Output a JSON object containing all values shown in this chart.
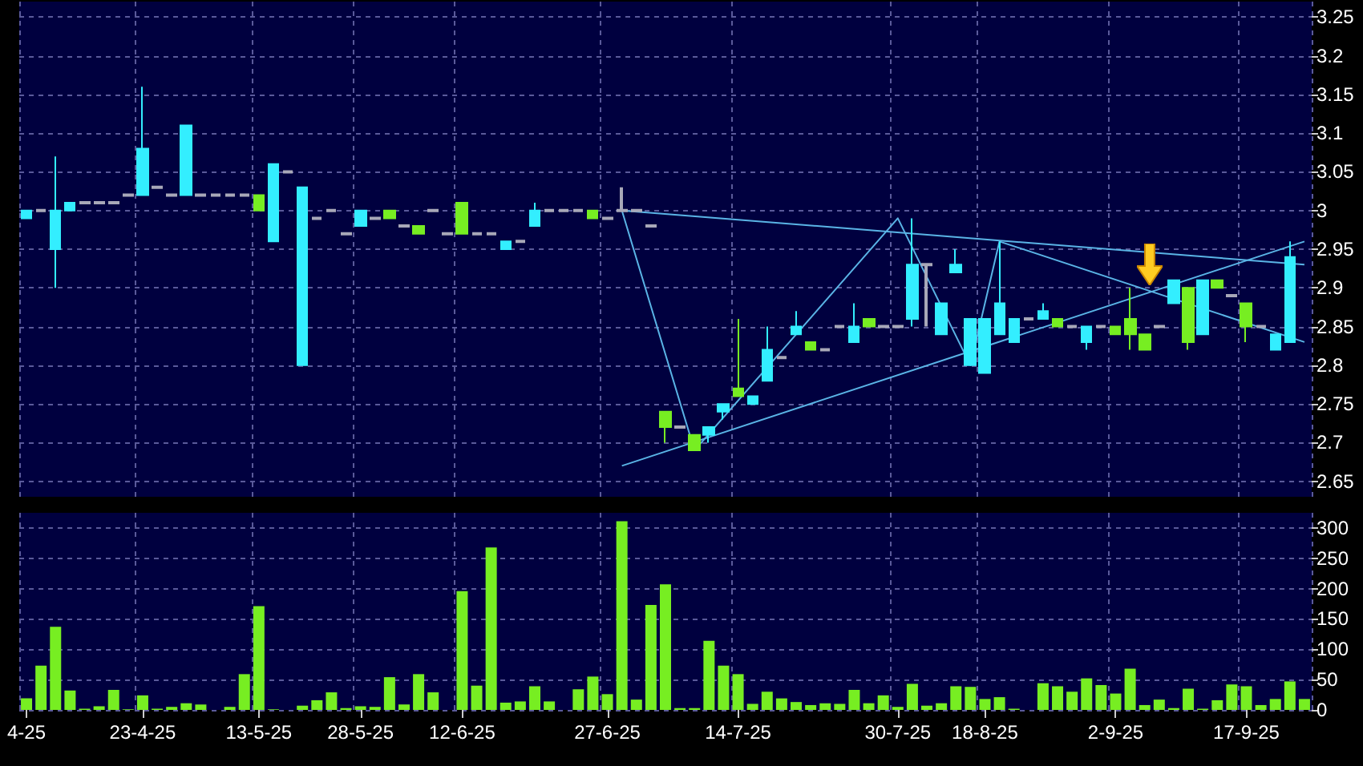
{
  "chart_data": [
    {
      "type": "candlestick",
      "categories": [
        null,
        null,
        null,
        null,
        null,
        null,
        null,
        null,
        null,
        null,
        null,
        null,
        null,
        null,
        null,
        null,
        null,
        null,
        null,
        null,
        null,
        null,
        null,
        null,
        null,
        null,
        null,
        null,
        null,
        null,
        null,
        null,
        null,
        null,
        null,
        null,
        null,
        null,
        null,
        null,
        null,
        null,
        null,
        null,
        null,
        null,
        null,
        null,
        null,
        null,
        null,
        null,
        null,
        null,
        null,
        null,
        null,
        null,
        null,
        null,
        null,
        null,
        null,
        null,
        null,
        null,
        null,
        null,
        null,
        null,
        null,
        null,
        null,
        null,
        null,
        null,
        null,
        null,
        null,
        null,
        null,
        null,
        null,
        null,
        null,
        null,
        null,
        null,
        null
      ],
      "ohlc": [
        [
          2.99,
          3.0,
          2.99,
          3.0
        ],
        [
          3.0,
          3.0,
          3.0,
          3.0
        ],
        [
          2.95,
          3.07,
          2.9,
          3.0
        ],
        [
          3.0,
          3.01,
          3.0,
          3.01
        ],
        [
          3.01,
          3.01,
          3.01,
          3.01
        ],
        [
          3.01,
          3.01,
          3.01,
          3.01
        ],
        [
          3.01,
          3.01,
          3.01,
          3.01
        ],
        [
          3.02,
          3.02,
          3.02,
          3.02
        ],
        [
          3.02,
          3.16,
          3.02,
          3.08
        ],
        [
          3.03,
          3.03,
          3.03,
          3.03
        ],
        [
          3.02,
          3.02,
          3.02,
          3.02
        ],
        [
          3.02,
          3.11,
          3.02,
          3.11
        ],
        [
          3.02,
          3.02,
          3.02,
          3.02
        ],
        [
          3.02,
          3.02,
          3.02,
          3.02
        ],
        [
          3.02,
          3.02,
          3.02,
          3.02
        ],
        [
          3.02,
          3.02,
          3.02,
          3.02
        ],
        [
          3.02,
          3.02,
          3.0,
          3.0
        ],
        [
          2.96,
          3.06,
          2.96,
          3.06
        ],
        [
          3.05,
          3.05,
          3.05,
          3.05
        ],
        [
          2.8,
          3.03,
          2.8,
          3.03
        ],
        [
          2.99,
          2.99,
          2.99,
          2.99
        ],
        [
          3.0,
          3.0,
          3.0,
          3.0
        ],
        [
          2.97,
          2.97,
          2.97,
          2.97
        ],
        [
          2.98,
          3.0,
          2.98,
          3.0
        ],
        [
          2.99,
          2.99,
          2.99,
          2.99
        ],
        [
          3.0,
          3.0,
          2.99,
          2.99
        ],
        [
          2.98,
          2.98,
          2.98,
          2.98
        ],
        [
          2.98,
          2.98,
          2.97,
          2.97
        ],
        [
          3.0,
          3.0,
          3.0,
          3.0
        ],
        [
          2.97,
          2.97,
          2.97,
          2.97
        ],
        [
          3.01,
          3.01,
          2.97,
          2.97
        ],
        [
          2.97,
          2.97,
          2.97,
          2.97
        ],
        [
          2.97,
          2.97,
          2.97,
          2.97
        ],
        [
          2.95,
          2.96,
          2.95,
          2.96
        ],
        [
          2.96,
          2.96,
          2.96,
          2.96
        ],
        [
          2.98,
          3.01,
          2.98,
          3.0
        ],
        [
          3.0,
          3.0,
          3.0,
          3.0
        ],
        [
          3.0,
          3.0,
          3.0,
          3.0
        ],
        [
          3.0,
          3.0,
          3.0,
          3.0
        ],
        [
          3.0,
          3.0,
          2.99,
          2.99
        ],
        [
          2.99,
          2.99,
          2.99,
          2.99
        ],
        [
          3.0,
          3.03,
          3.0,
          3.0
        ],
        [
          3.0,
          3.0,
          3.0,
          3.0
        ],
        [
          2.98,
          2.98,
          2.98,
          2.98
        ],
        [
          2.74,
          2.74,
          2.7,
          2.72
        ],
        [
          2.72,
          2.72,
          2.72,
          2.72
        ],
        [
          2.71,
          2.71,
          2.69,
          2.69
        ],
        [
          2.71,
          2.72,
          2.7,
          2.72
        ],
        [
          2.74,
          2.75,
          2.73,
          2.75
        ],
        [
          2.77,
          2.86,
          2.76,
          2.76
        ],
        [
          2.75,
          2.76,
          2.75,
          2.76
        ],
        [
          2.78,
          2.85,
          2.78,
          2.82
        ],
        [
          2.81,
          2.81,
          2.81,
          2.81
        ],
        [
          2.84,
          2.87,
          2.84,
          2.85
        ],
        [
          2.83,
          2.83,
          2.82,
          2.82
        ],
        [
          2.82,
          2.82,
          2.82,
          2.82
        ],
        [
          2.85,
          2.85,
          2.85,
          2.85
        ],
        [
          2.83,
          2.88,
          2.83,
          2.85
        ],
        [
          2.86,
          2.86,
          2.85,
          2.85
        ],
        [
          2.85,
          2.85,
          2.85,
          2.85
        ],
        [
          2.85,
          2.85,
          2.85,
          2.85
        ],
        [
          2.86,
          2.99,
          2.85,
          2.93
        ],
        [
          2.93,
          2.93,
          2.85,
          2.93
        ],
        [
          2.84,
          2.88,
          2.84,
          2.88
        ],
        [
          2.92,
          2.95,
          2.92,
          2.93
        ],
        [
          2.8,
          2.86,
          2.8,
          2.86
        ],
        [
          2.79,
          2.86,
          2.79,
          2.86
        ],
        [
          2.84,
          2.96,
          2.84,
          2.88
        ],
        [
          2.83,
          2.86,
          2.83,
          2.86
        ],
        [
          2.86,
          2.86,
          2.86,
          2.86
        ],
        [
          2.86,
          2.88,
          2.86,
          2.87
        ],
        [
          2.86,
          2.86,
          2.85,
          2.85
        ],
        [
          2.85,
          2.85,
          2.85,
          2.85
        ],
        [
          2.83,
          2.85,
          2.82,
          2.85
        ],
        [
          2.85,
          2.85,
          2.85,
          2.85
        ],
        [
          2.85,
          2.85,
          2.84,
          2.84
        ],
        [
          2.86,
          2.9,
          2.82,
          2.84
        ],
        [
          2.84,
          2.84,
          2.82,
          2.82
        ],
        [
          2.85,
          2.85,
          2.85,
          2.85
        ],
        [
          2.88,
          2.91,
          2.88,
          2.91
        ],
        [
          2.9,
          2.9,
          2.82,
          2.83
        ],
        [
          2.84,
          2.91,
          2.84,
          2.91
        ],
        [
          2.91,
          2.91,
          2.9,
          2.9
        ],
        [
          2.89,
          2.89,
          2.89,
          2.89
        ],
        [
          2.88,
          2.88,
          2.83,
          2.85
        ],
        [
          2.85,
          2.85,
          2.85,
          2.85
        ],
        [
          2.82,
          2.84,
          2.82,
          2.84
        ],
        [
          2.83,
          2.96,
          2.83,
          2.94
        ],
        null
      ],
      "colors": [
        "#33eeff",
        "#a8a8b8",
        "#33eeff",
        "#33eeff",
        "#a8a8b8",
        "#a8a8b8",
        "#a8a8b8",
        "#a8a8b8",
        "#33eeff",
        "#a8a8b8",
        "#a8a8b8",
        "#33eeff",
        "#a8a8b8",
        "#a8a8b8",
        "#a8a8b8",
        "#a8a8b8",
        "#77ee22",
        "#33eeff",
        "#a8a8b8",
        "#33eeff",
        "#a8a8b8",
        "#a8a8b8",
        "#a8a8b8",
        "#33eeff",
        "#a8a8b8",
        "#77ee22",
        "#a8a8b8",
        "#77ee22",
        "#a8a8b8",
        "#a8a8b8",
        "#77ee22",
        "#a8a8b8",
        "#a8a8b8",
        "#33eeff",
        "#a8a8b8",
        "#33eeff",
        "#a8a8b8",
        "#a8a8b8",
        "#a8a8b8",
        "#77ee22",
        "#a8a8b8",
        "#a8a8b8",
        "#a8a8b8",
        "#a8a8b8",
        "#77ee22",
        "#a8a8b8",
        "#77ee22",
        "#33eeff",
        "#33eeff",
        "#77ee22",
        "#33eeff",
        "#33eeff",
        "#a8a8b8",
        "#33eeff",
        "#77ee22",
        "#a8a8b8",
        "#a8a8b8",
        "#33eeff",
        "#77ee22",
        "#a8a8b8",
        "#a8a8b8",
        "#33eeff",
        "#a8a8b8",
        "#33eeff",
        "#33eeff",
        "#33eeff",
        "#33eeff",
        "#33eeff",
        "#33eeff",
        "#a8a8b8",
        "#33eeff",
        "#77ee22",
        "#a8a8b8",
        "#33eeff",
        "#a8a8b8",
        "#77ee22",
        "#77ee22",
        "#77ee22",
        "#a8a8b8",
        "#33eeff",
        "#77ee22",
        "#33eeff",
        "#77ee22",
        "#a8a8b8",
        "#77ee22",
        "#a8a8b8",
        "#33eeff",
        "#33eeff",
        null
      ],
      "series": [
        {
          "type": "line",
          "color": "#5ab4e6",
          "values": [
            null,
            null,
            null,
            null,
            null,
            null,
            null,
            null,
            null,
            null,
            null,
            null,
            null,
            null,
            null,
            null,
            null,
            null,
            null,
            null,
            null,
            null,
            null,
            null,
            null,
            null,
            null,
            null,
            null,
            null,
            null,
            null,
            null,
            null,
            null,
            null,
            null,
            null,
            null,
            null,
            null,
            3.0,
            null,
            null,
            null,
            null,
            null,
            null,
            null,
            null,
            null,
            null,
            null,
            null,
            null,
            null,
            null,
            null,
            null,
            null,
            null,
            null,
            null,
            null,
            null,
            null,
            null,
            null,
            null,
            null,
            null,
            null,
            null,
            null,
            null,
            null,
            null,
            null,
            null,
            null,
            null,
            null,
            null,
            null,
            null,
            null,
            null,
            null,
            2.93
          ]
        },
        {
          "type": "line",
          "color": "#5ab4e6",
          "values": [
            null,
            null,
            null,
            null,
            null,
            null,
            null,
            null,
            null,
            null,
            null,
            null,
            null,
            null,
            null,
            null,
            null,
            null,
            null,
            null,
            null,
            null,
            null,
            null,
            null,
            null,
            null,
            null,
            null,
            null,
            null,
            null,
            null,
            null,
            null,
            null,
            null,
            null,
            null,
            null,
            null,
            3.0,
            null,
            null,
            null,
            null,
            2.69,
            null,
            null,
            null,
            null,
            null,
            null,
            null,
            null,
            null,
            null,
            null,
            null,
            null,
            2.99,
            null,
            null,
            null,
            null,
            2.8,
            null,
            2.96,
            null,
            null,
            null,
            null,
            null,
            null,
            null,
            null,
            null,
            null,
            null,
            null,
            null,
            null,
            null,
            null,
            null,
            null,
            null,
            null,
            2.83
          ]
        },
        {
          "type": "line",
          "color": "#5ab4e6",
          "values": [
            null,
            null,
            null,
            null,
            null,
            null,
            null,
            null,
            null,
            null,
            null,
            null,
            null,
            null,
            null,
            null,
            null,
            null,
            null,
            null,
            null,
            null,
            null,
            null,
            null,
            null,
            null,
            null,
            null,
            null,
            null,
            null,
            null,
            null,
            null,
            null,
            null,
            null,
            null,
            null,
            null,
            2.67,
            null,
            null,
            null,
            null,
            null,
            null,
            null,
            null,
            null,
            null,
            null,
            null,
            null,
            null,
            null,
            null,
            null,
            null,
            null,
            null,
            null,
            null,
            null,
            null,
            null,
            null,
            null,
            null,
            null,
            null,
            null,
            null,
            null,
            null,
            null,
            null,
            null,
            null,
            null,
            null,
            null,
            null,
            null,
            null,
            null,
            null,
            2.96
          ]
        }
      ],
      "ylim": [
        2.63,
        3.27
      ],
      "yticks": [
        2.65,
        2.7,
        2.75,
        2.8,
        2.85,
        2.9,
        2.95,
        3,
        3.05,
        3.1,
        3.15,
        3.2,
        3.25
      ],
      "grid": true,
      "tick_labels": "y"
    },
    {
      "type": "bar",
      "categories": [
        "4-25",
        null,
        null,
        null,
        null,
        null,
        null,
        null,
        "23-4-25",
        null,
        null,
        null,
        null,
        null,
        null,
        null,
        "13-5-25",
        null,
        null,
        null,
        null,
        null,
        null,
        "28-5-25",
        null,
        null,
        null,
        null,
        null,
        null,
        "12-6-25",
        null,
        null,
        null,
        null,
        null,
        null,
        null,
        null,
        null,
        "27-6-25",
        null,
        null,
        null,
        null,
        null,
        null,
        null,
        null,
        "14-7-25",
        null,
        null,
        null,
        null,
        null,
        null,
        null,
        null,
        null,
        null,
        "30-7-25",
        null,
        null,
        null,
        null,
        null,
        "18-8-25",
        null,
        null,
        null,
        null,
        null,
        null,
        null,
        null,
        "2-9-25",
        null,
        null,
        null,
        null,
        null,
        null,
        null,
        null,
        "17-9-25",
        null,
        null,
        null,
        null
      ],
      "values": [
        19,
        73,
        137,
        32,
        2,
        6,
        33,
        1,
        24,
        2,
        5,
        11,
        9,
        0,
        5,
        59,
        171,
        1,
        0,
        7,
        16,
        29,
        3,
        6,
        5,
        54,
        9,
        59,
        29,
        0,
        196,
        40,
        268,
        12,
        14,
        39,
        14,
        0,
        34,
        55,
        26,
        311,
        17,
        173,
        207,
        3,
        3,
        114,
        73,
        59,
        10,
        30,
        19,
        13,
        8,
        11,
        10,
        33,
        11,
        24,
        5,
        43,
        7,
        11,
        39,
        38,
        18,
        21,
        2,
        0,
        44,
        39,
        30,
        52,
        41,
        27,
        68,
        8,
        17,
        3,
        35,
        2,
        16,
        42,
        39,
        8,
        18,
        47,
        18
      ],
      "color": "#77ee22",
      "ylim": [
        0,
        325
      ],
      "yticks": [
        0,
        50,
        100,
        150,
        200,
        250,
        300
      ],
      "grid": true
    }
  ]
}
